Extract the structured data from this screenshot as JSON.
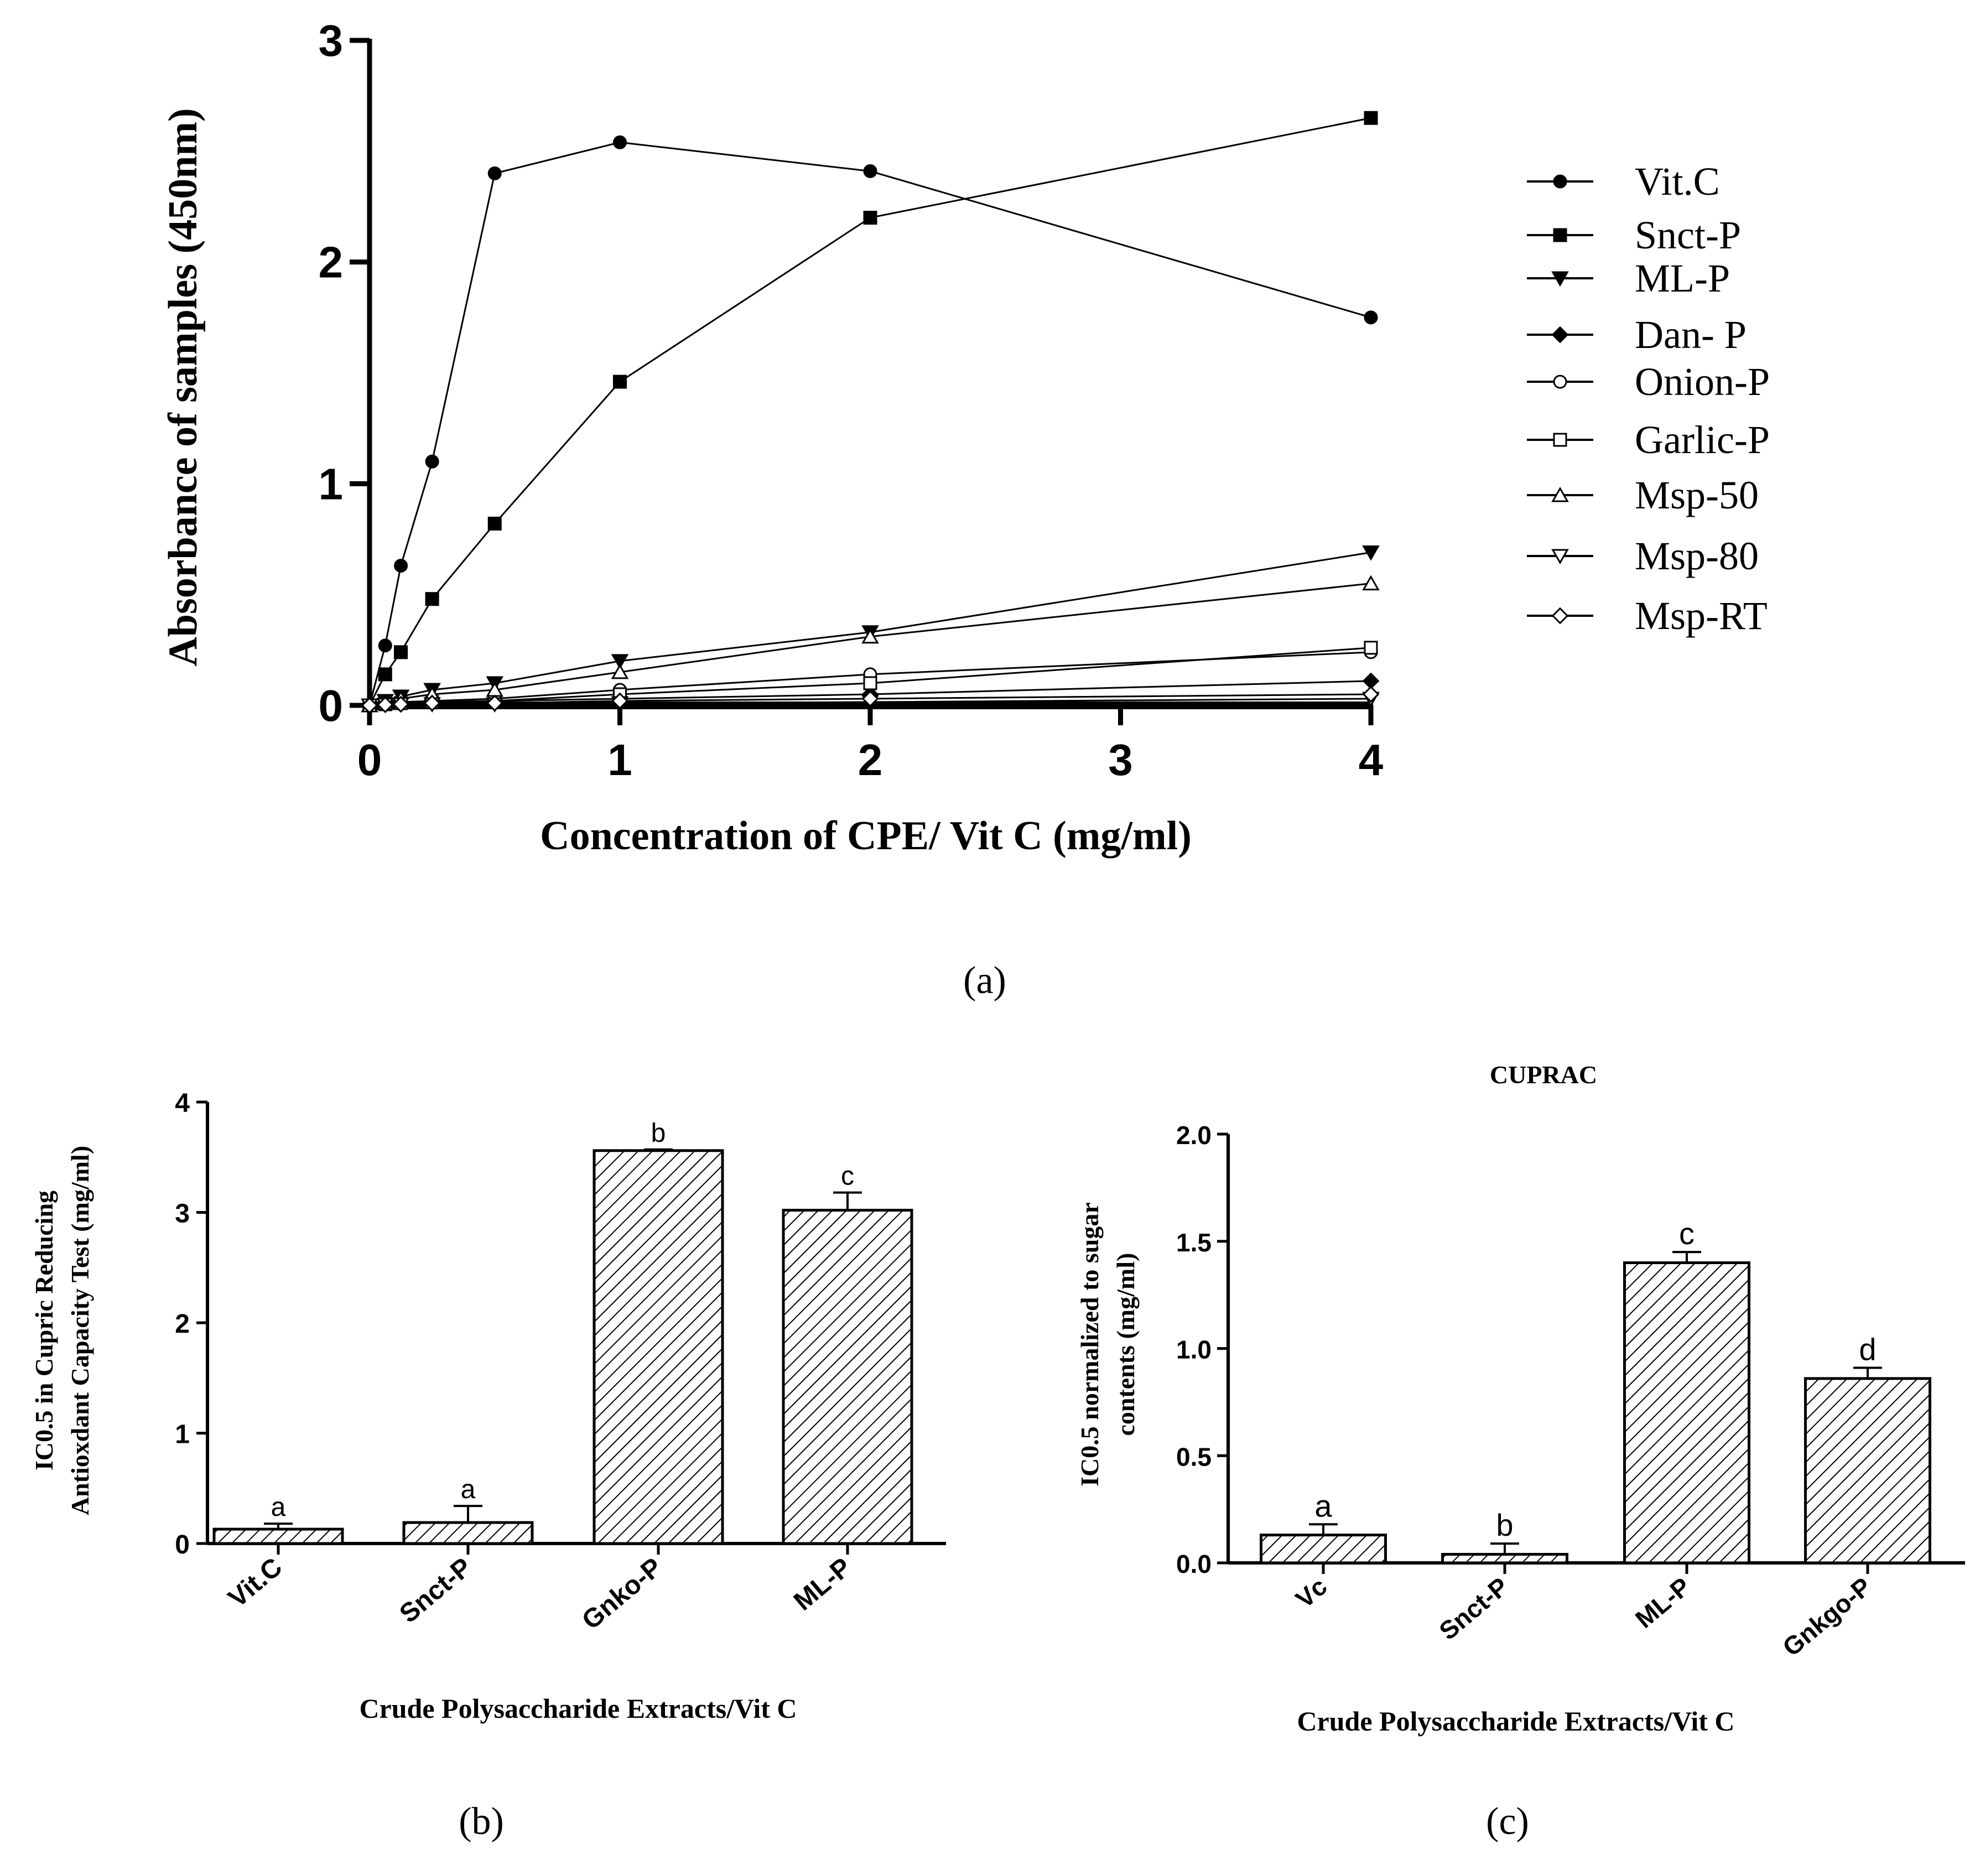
{
  "chart_data": [
    {
      "panel_label": "(a)",
      "type": "line",
      "title": "",
      "xlabel": "Concentration of CPE/ Vit C (mg/ml)",
      "ylabel": "Absorbance of samples (450nm)",
      "xlim": [
        0,
        4
      ],
      "ylim": [
        0,
        3
      ],
      "x_ticks": [
        "0",
        "1",
        "2",
        "3",
        "4"
      ],
      "y_ticks": [
        "0",
        "1",
        "2",
        "3"
      ],
      "x": [
        0,
        0.0625,
        0.125,
        0.25,
        0.5,
        1,
        2,
        4
      ],
      "legend_position": "right",
      "series": [
        {
          "name": "Vit.C",
          "marker": "filled-circle",
          "values": [
            0,
            0.27,
            0.63,
            1.1,
            2.4,
            2.54,
            2.41,
            1.75
          ]
        },
        {
          "name": "Snct-P",
          "marker": "filled-square",
          "values": [
            0,
            0.14,
            0.24,
            0.48,
            0.82,
            1.46,
            2.2,
            2.65
          ]
        },
        {
          "name": "ML-P",
          "marker": "filled-triangle-down",
          "values": [
            0,
            0.02,
            0.04,
            0.07,
            0.1,
            0.2,
            0.33,
            0.69
          ]
        },
        {
          "name": "Dan- P",
          "marker": "filled-diamond",
          "values": [
            0,
            0.005,
            0.01,
            0.015,
            0.02,
            0.03,
            0.05,
            0.11
          ]
        },
        {
          "name": "Onion-P",
          "marker": "open-circle",
          "values": [
            0,
            0.01,
            0.015,
            0.02,
            0.03,
            0.07,
            0.14,
            0.24
          ]
        },
        {
          "name": "Garlic-P",
          "marker": "open-square",
          "values": [
            0,
            0.005,
            0.01,
            0.015,
            0.02,
            0.05,
            0.1,
            0.26
          ]
        },
        {
          "name": "Msp-50",
          "marker": "open-triangle-up",
          "values": [
            0,
            0.01,
            0.03,
            0.05,
            0.07,
            0.15,
            0.31,
            0.55
          ]
        },
        {
          "name": "Msp-80",
          "marker": "open-triangle-down",
          "values": [
            0,
            0.003,
            0.005,
            0.005,
            0.005,
            0.01,
            0.015,
            0.03
          ]
        },
        {
          "name": "Msp-RT",
          "marker": "open-diamond",
          "values": [
            0,
            0.003,
            0.005,
            0.01,
            0.01,
            0.02,
            0.03,
            0.05
          ]
        }
      ]
    },
    {
      "panel_label": "(b)",
      "type": "bar",
      "title": "",
      "xlabel": "Crude Polysaccharide Extracts/Vit C",
      "ylabel_lines": [
        "IC0.5 in Cupric Reducing",
        "Antioxdant Capacity Test  (mg/ml)"
      ],
      "ylim": [
        0,
        4
      ],
      "y_ticks": [
        "0",
        "1",
        "2",
        "3",
        "4"
      ],
      "categories": [
        "Vit.C",
        "Snct-P",
        "Gnko-P",
        "ML-P"
      ],
      "values": [
        0.13,
        0.19,
        3.56,
        3.02
      ],
      "errors": [
        0.05,
        0.15,
        0.01,
        0.16
      ],
      "annotations": [
        "a",
        "a",
        "b",
        "c"
      ]
    },
    {
      "panel_label": "(c)",
      "type": "bar",
      "title": "CUPRAC",
      "xlabel": "Crude Polysaccharide Extracts/Vit C",
      "ylabel_lines": [
        "IC0.5 normalized to sugar",
        "contents (mg/ml)"
      ],
      "ylim": [
        0,
        2
      ],
      "y_ticks": [
        "0.0",
        "0.5",
        "1.0",
        "1.5",
        "2.0"
      ],
      "categories": [
        "Vc",
        "Snct-P",
        "ML-P",
        "Gnkgo-P"
      ],
      "values": [
        0.13,
        0.04,
        1.4,
        0.86
      ],
      "errors": [
        0.05,
        0.05,
        0.05,
        0.05
      ],
      "annotations": [
        "a",
        "b",
        "c",
        "d"
      ]
    }
  ]
}
